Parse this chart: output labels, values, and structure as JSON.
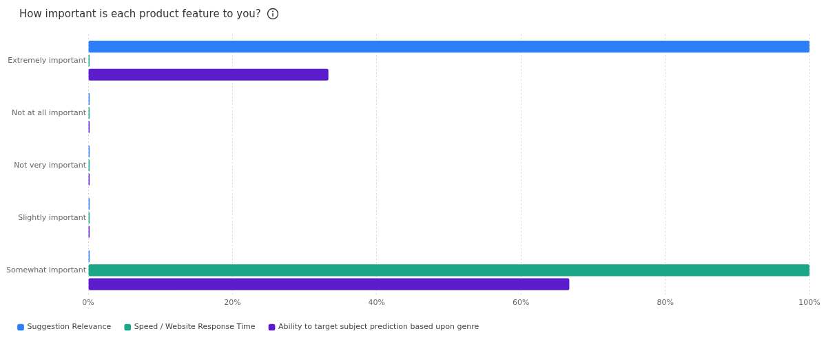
{
  "chart_data": {
    "type": "bar",
    "orientation": "horizontal",
    "title": "How important is each product feature to you?",
    "categories": [
      "Extremely important",
      "Not at all important",
      "Not very important",
      "Slightly important",
      "Somewhat important"
    ],
    "series": [
      {
        "name": "Suggestion Relevance",
        "color": "#2d7ff9",
        "values": [
          100,
          0,
          0,
          0,
          0
        ]
      },
      {
        "name": "Speed / Website Response Time",
        "color": "#1ba688",
        "values": [
          0,
          0,
          0,
          0,
          100
        ]
      },
      {
        "name": "Ability to target subject prediction based upon genre",
        "color": "#5b1ccc",
        "values": [
          33.3,
          0,
          0,
          0,
          66.7
        ]
      }
    ],
    "xlim": [
      0,
      100
    ],
    "xticks": [
      {
        "value": 0,
        "label": "0%"
      },
      {
        "value": 20,
        "label": "20%"
      },
      {
        "value": 40,
        "label": "40%"
      },
      {
        "value": 60,
        "label": "60%"
      },
      {
        "value": 80,
        "label": "80%"
      },
      {
        "value": 100,
        "label": "100%"
      }
    ],
    "grid": "x",
    "legend": "bottom left"
  }
}
